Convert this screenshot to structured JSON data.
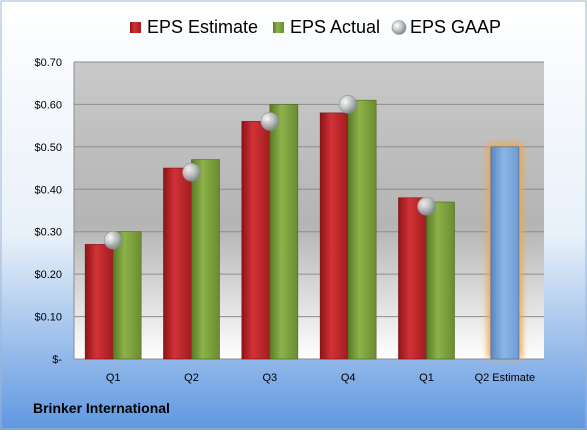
{
  "chart_data": {
    "type": "bar",
    "categories": [
      "Q1",
      "Q2",
      "Q3",
      "Q4",
      "Q1",
      "Q2 Estimate"
    ],
    "series": [
      {
        "name": "EPS Estimate",
        "values": [
          0.27,
          0.45,
          0.56,
          0.58,
          0.38,
          null
        ],
        "color": "#c0282d"
      },
      {
        "name": "EPS Actual",
        "values": [
          0.3,
          0.47,
          0.6,
          0.61,
          0.37,
          null
        ],
        "color": "#7fa13d"
      },
      {
        "name": "EPS GAAP",
        "type": "marker",
        "values": [
          0.28,
          0.44,
          0.56,
          0.6,
          0.36,
          null
        ],
        "color": "#b9bec4"
      }
    ],
    "estimate_bar": {
      "category": "Q2 Estimate",
      "value": 0.5,
      "color": "#7aa7d8",
      "glow": "#f5a54a"
    },
    "yticks": [
      0,
      0.1,
      0.2,
      0.3,
      0.4,
      0.5,
      0.6,
      0.7
    ],
    "ytick_labels": [
      "$-",
      "$0.10",
      "$0.20",
      "$0.30",
      "$0.40",
      "$0.50",
      "$0.60",
      "$0.70"
    ],
    "ylim": [
      0,
      0.7
    ],
    "grid": true,
    "legend_position": "top",
    "title": "",
    "xlabel": "",
    "ylabel": ""
  },
  "company": "Brinker International"
}
